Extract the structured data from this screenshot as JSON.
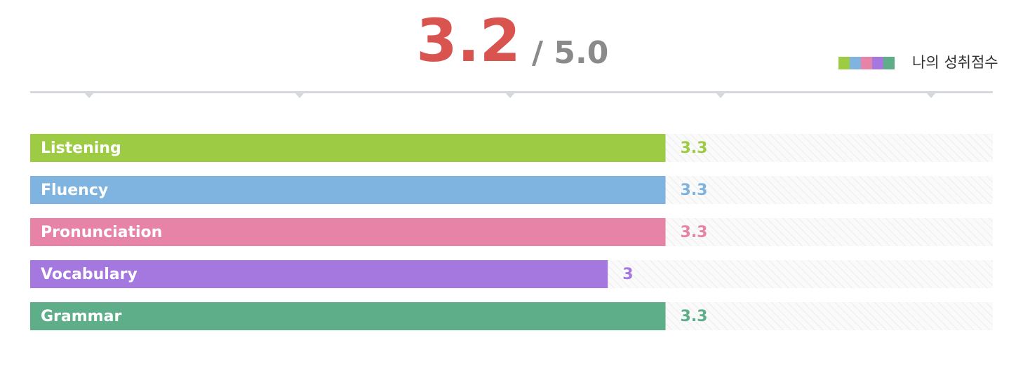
{
  "chart_data": {
    "type": "bar",
    "orientation": "horizontal",
    "overall_score": 3.2,
    "overall_max_label": "/ 5.0",
    "legend_label": "나의 성취점수",
    "categories": [
      "Listening",
      "Fluency",
      "Pronunciation",
      "Vocabulary",
      "Grammar"
    ],
    "values": [
      3.3,
      3.3,
      3.3,
      3,
      3.3
    ],
    "colors": [
      "#9ecb44",
      "#7fb3e0",
      "#e683a7",
      "#a578e0",
      "#5fae8a"
    ],
    "xlim": [
      0,
      5
    ]
  }
}
